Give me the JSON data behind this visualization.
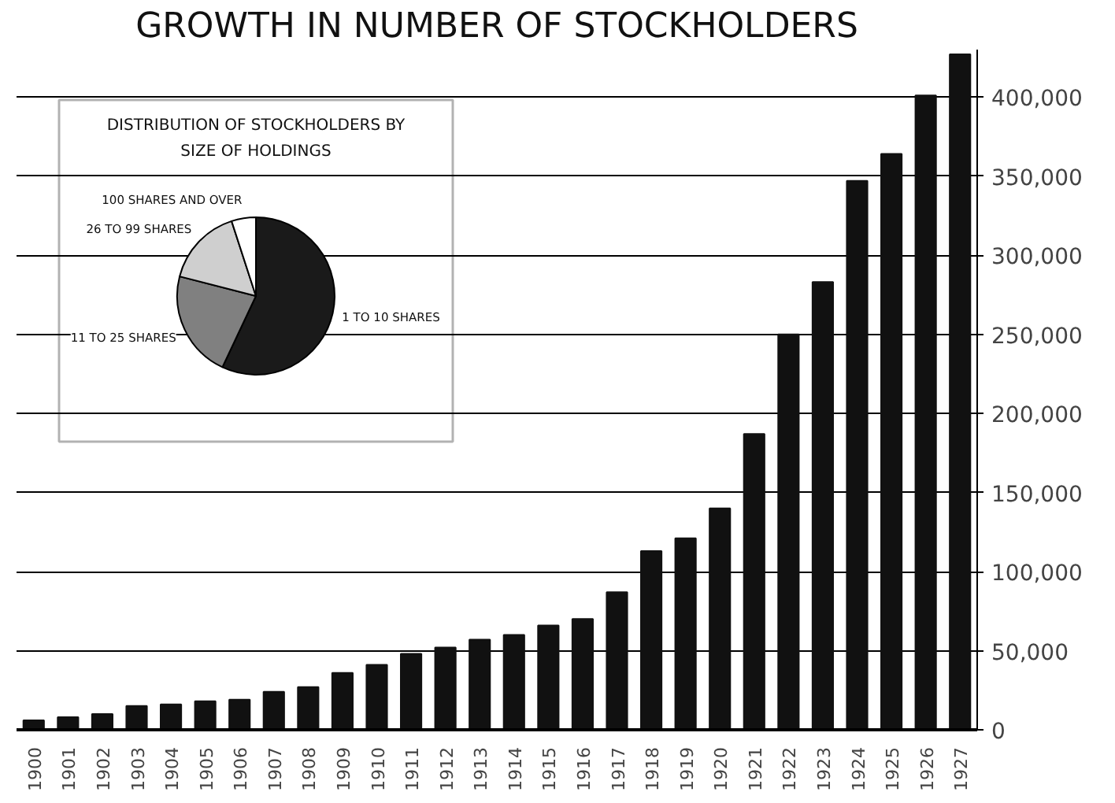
{
  "chart_data": [
    {
      "type": "bar",
      "title": "GROWTH IN NUMBER OF STOCKHOLDERS",
      "categories": [
        "1900",
        "1901",
        "1902",
        "1903",
        "1904",
        "1905",
        "1906",
        "1907",
        "1908",
        "1909",
        "1910",
        "1911",
        "1912",
        "1913",
        "1914",
        "1915",
        "1916",
        "1917",
        "1918",
        "1919",
        "1920",
        "1921",
        "1922",
        "1923",
        "1924",
        "1925",
        "1926",
        "1927"
      ],
      "values": [
        6000,
        8000,
        10000,
        15000,
        16000,
        18000,
        19000,
        24000,
        27000,
        36000,
        41000,
        48000,
        52000,
        57000,
        60000,
        66000,
        70000,
        87000,
        113000,
        121000,
        140000,
        187000,
        250000,
        283000,
        347000,
        364000,
        401000,
        427000
      ],
      "color": "#111111",
      "ylim": [
        0,
        430000
      ],
      "yticks": [
        0,
        {
          "value": 50000,
          "label": "50,000"
        },
        {
          "value": 100000,
          "label": "100,000"
        },
        {
          "value": 150000,
          "label": "150,000"
        },
        {
          "value": 200000,
          "label": "200,000"
        },
        {
          "value": 250000,
          "label": "250,000"
        },
        {
          "value": 300000,
          "label": "300,000"
        },
        {
          "value": 350000,
          "label": "350,000"
        },
        {
          "value": 400000,
          "label": "400,000"
        }
      ],
      "grid": "y"
    },
    {
      "type": "pie",
      "title": "DISTRIBUTION OF STOCKHOLDERS BY SIZE OF HOLDINGS",
      "categories": [
        "1 TO 10 SHARES",
        "11 TO 25 SHARES",
        "26 TO 99 SHARES",
        "100 SHARES AND OVER"
      ],
      "values": [
        57,
        22,
        16,
        5
      ],
      "colors": [
        "#1a1a1a",
        "#808080",
        "#cfcfcf",
        "#ffffff"
      ]
    }
  ]
}
